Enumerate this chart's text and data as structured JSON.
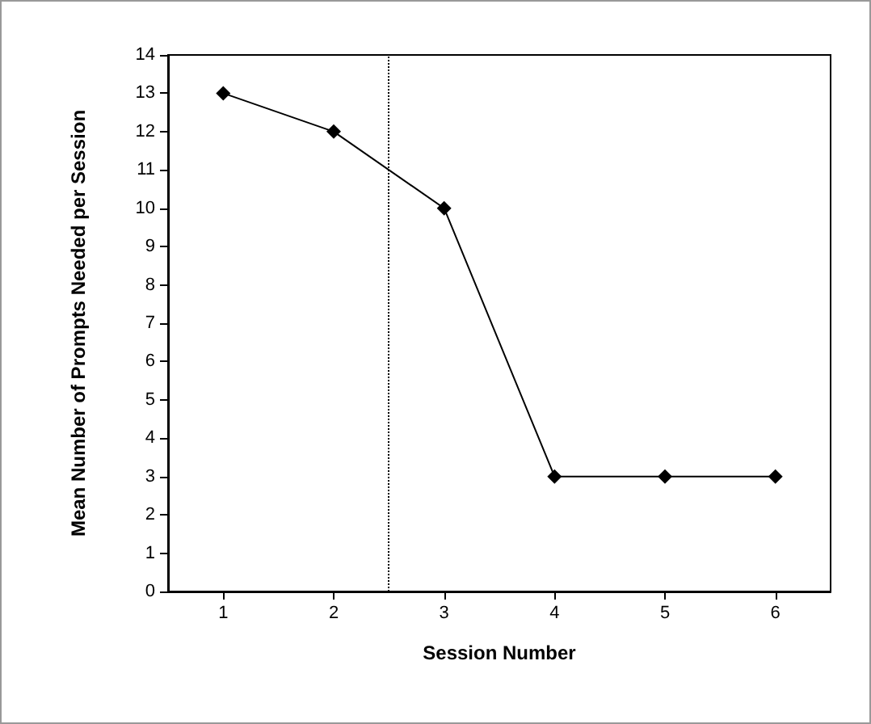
{
  "chart_data": {
    "type": "line",
    "xlabel": "Session Number",
    "ylabel": "Mean Number of Prompts Needed per Session",
    "x": [
      1,
      2,
      3,
      4,
      5,
      6
    ],
    "series": [
      {
        "color": "#000000",
        "values": [
          13,
          12,
          10,
          3,
          3,
          3
        ]
      }
    ],
    "xlim": [
      0.5,
      6.5
    ],
    "xticks": [
      1,
      2,
      3,
      4,
      5,
      6
    ],
    "ylim": [
      0,
      14
    ],
    "yticks": [
      0,
      1,
      2,
      3,
      4,
      5,
      6,
      7,
      8,
      9,
      10,
      11,
      12,
      13,
      14
    ],
    "ref_lines": [
      {
        "axis": "x",
        "value": 2.5,
        "color": "#000000",
        "line_style": "dotted"
      }
    ],
    "marker": "diamond",
    "line_style": "solid",
    "grid": false
  }
}
